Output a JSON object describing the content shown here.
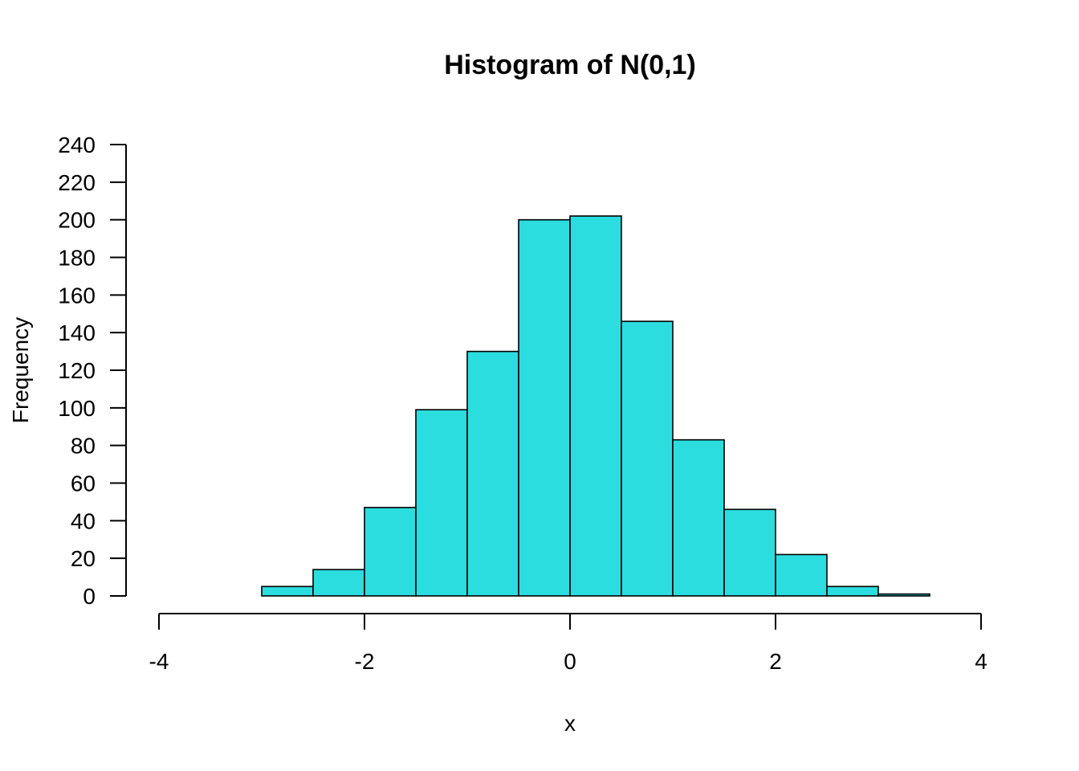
{
  "chart_data": {
    "type": "bar",
    "title": "Histogram of N(0,1)",
    "xlabel": "x",
    "ylabel": "Frequency",
    "bar_color": "#2CDDDF",
    "bins": [
      [
        -3.0,
        -2.5
      ],
      [
        -2.5,
        -2.0
      ],
      [
        -2.0,
        -1.5
      ],
      [
        -1.5,
        -1.0
      ],
      [
        -1.0,
        -0.5
      ],
      [
        -0.5,
        0.0
      ],
      [
        0.0,
        0.5
      ],
      [
        0.5,
        1.0
      ],
      [
        1.0,
        1.5
      ],
      [
        1.5,
        2.0
      ],
      [
        2.0,
        2.5
      ],
      [
        2.5,
        3.0
      ],
      [
        3.0,
        3.5
      ]
    ],
    "values": [
      5,
      14,
      47,
      99,
      130,
      200,
      202,
      146,
      83,
      46,
      22,
      5,
      1
    ],
    "xlim": [
      -4,
      4
    ],
    "ylim": [
      0,
      240
    ],
    "x_ticks": [
      -4,
      -2,
      0,
      2,
      4
    ],
    "x_tick_labels": [
      "-4",
      "-2",
      "0",
      "2",
      "4"
    ],
    "y_ticks": [
      0,
      20,
      40,
      60,
      80,
      100,
      120,
      140,
      160,
      180,
      200,
      220,
      240
    ],
    "y_tick_labels": [
      "0",
      "20",
      "40",
      "60",
      "80",
      "100",
      "120",
      "140",
      "160",
      "180",
      "200",
      "220",
      "240"
    ],
    "grid": false,
    "legend": "none"
  }
}
